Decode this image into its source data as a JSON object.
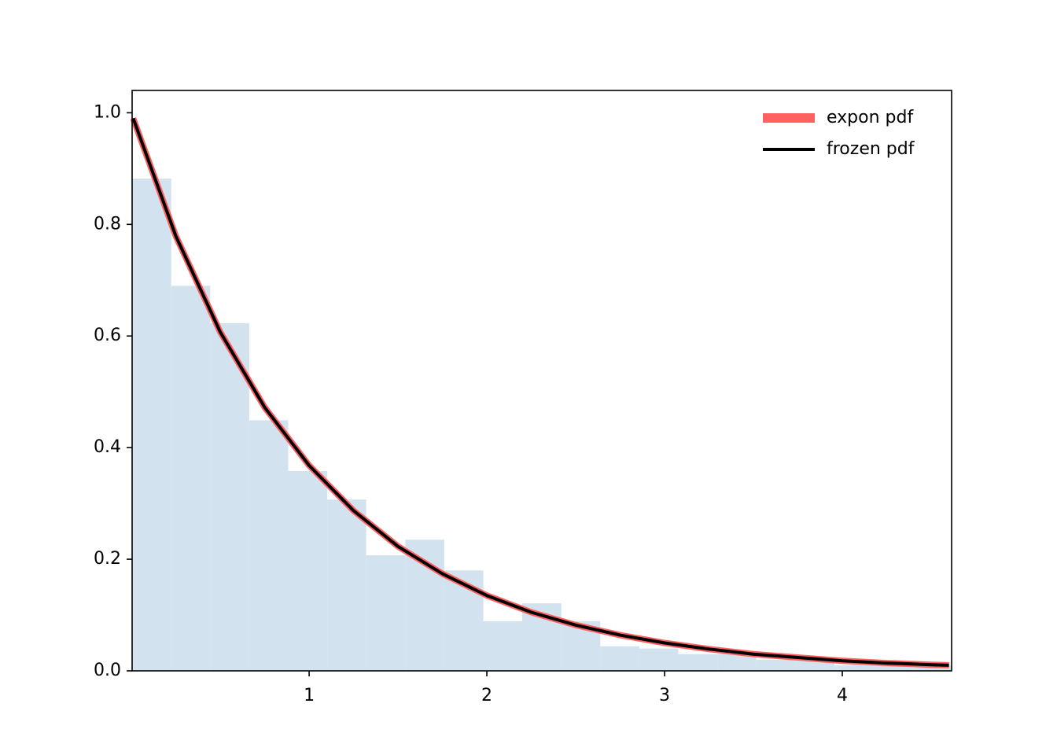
{
  "chart_data": {
    "type": "histogram",
    "bins": [
      0.004,
      0.224,
      0.443,
      0.663,
      0.882,
      1.102,
      1.321,
      1.541,
      1.76,
      1.98,
      2.199,
      2.419,
      2.638,
      2.858,
      3.077,
      3.297,
      3.516,
      3.736,
      3.955,
      4.175,
      4.395,
      4.615
    ],
    "values": [
      0.882,
      0.69,
      0.623,
      0.449,
      0.358,
      0.307,
      0.207,
      0.235,
      0.18,
      0.089,
      0.121,
      0.089,
      0.044,
      0.04,
      0.03,
      0.03,
      0.02,
      0.02,
      0.01,
      0.01,
      0.01
    ],
    "color": "#d2e3ef",
    "series": [
      {
        "name": "expon pdf",
        "color": "#ff6161",
        "x": [
          0.01,
          0.25,
          0.5,
          0.75,
          1,
          1.25,
          1.5,
          1.75,
          2,
          2.25,
          2.5,
          2.75,
          3,
          3.25,
          3.5,
          3.75,
          4,
          4.25,
          4.5,
          4.6
        ],
        "values": [
          0.99,
          0.779,
          0.607,
          0.472,
          0.368,
          0.287,
          0.223,
          0.174,
          0.135,
          0.105,
          0.082,
          0.064,
          0.05,
          0.039,
          0.03,
          0.024,
          0.018,
          0.014,
          0.011,
          0.01
        ]
      },
      {
        "name": "frozen pdf",
        "color": "#000000",
        "x": [
          0.01,
          0.25,
          0.5,
          0.75,
          1,
          1.25,
          1.5,
          1.75,
          2,
          2.25,
          2.5,
          2.75,
          3,
          3.25,
          3.5,
          3.75,
          4,
          4.25,
          4.5,
          4.6
        ],
        "values": [
          0.99,
          0.779,
          0.607,
          0.472,
          0.368,
          0.287,
          0.223,
          0.174,
          0.135,
          0.105,
          0.082,
          0.064,
          0.05,
          0.039,
          0.03,
          0.024,
          0.018,
          0.014,
          0.011,
          0.01
        ]
      }
    ],
    "xlim": [
      0.004,
      4.615
    ],
    "ylim": [
      0,
      1.04
    ],
    "xticks": [
      1,
      2,
      3,
      4
    ],
    "yticks": [
      {
        "value": 0,
        "label": "0.0"
      },
      0.2,
      0.4,
      0.6,
      0.8,
      {
        "value": 1,
        "label": "1.0"
      }
    ],
    "legend": "upper right"
  }
}
